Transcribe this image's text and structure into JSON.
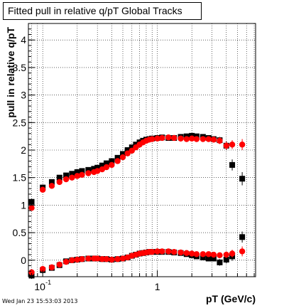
{
  "footer": {
    "timestamp": "Wed Jan 23 15:53:03 2013"
  },
  "colors": {
    "black_series": "#000000",
    "red_series": "#ff0000",
    "frame": "#000000",
    "grid": "#000000"
  },
  "chart_data": {
    "type": "scatter",
    "title": "Fitted pull in relative q/pT  Global Tracks",
    "xlabel": "pT (GeV/c)",
    "ylabel": "pull in relative q/pT",
    "x_scale": "log",
    "xlim": [
      0.075,
      7.2
    ],
    "ylim": [
      -0.3,
      4.3
    ],
    "grid": true,
    "y_ticks": [
      0,
      0.5,
      1,
      1.5,
      2,
      2.5,
      3,
      3.5,
      4
    ],
    "y_tick_labels": [
      "0",
      "0.5",
      "1",
      "1.5",
      "2",
      "2.5",
      "3",
      "3.5",
      "4"
    ],
    "x_tick_labels": [
      {
        "value": 0.1,
        "base": "10",
        "exp": "-1"
      },
      {
        "value": 1,
        "base": "1",
        "exp": ""
      }
    ],
    "series": [
      {
        "color": "#000000",
        "x": [
          0.08,
          0.1,
          0.12,
          0.14,
          0.16,
          0.18,
          0.2,
          0.22,
          0.25,
          0.28,
          0.3,
          0.33,
          0.36,
          0.4,
          0.45,
          0.5,
          0.55,
          0.6,
          0.65,
          0.7,
          0.75,
          0.8,
          0.85,
          0.9,
          1.0,
          1.1,
          1.25,
          1.4,
          1.6,
          1.8,
          2.0,
          2.2,
          2.5,
          2.8,
          3.1,
          3.5,
          4.0,
          4.5,
          5.5
        ],
        "y": [
          1.06,
          1.32,
          1.42,
          1.5,
          1.54,
          1.57,
          1.6,
          1.62,
          1.64,
          1.66,
          1.68,
          1.72,
          1.76,
          1.8,
          1.86,
          1.93,
          2.0,
          2.05,
          2.1,
          2.14,
          2.17,
          2.19,
          2.2,
          2.21,
          2.22,
          2.23,
          2.22,
          2.22,
          2.24,
          2.25,
          2.26,
          2.25,
          2.24,
          2.22,
          2.2,
          2.18,
          2.08,
          1.73,
          1.48
        ],
        "yerr": [
          0.06,
          0.04,
          0.03,
          0.02,
          0.02,
          0.02,
          0.02,
          0.02,
          0.02,
          0.02,
          0.02,
          0.02,
          0.02,
          0.02,
          0.02,
          0.02,
          0.02,
          0.02,
          0.02,
          0.02,
          0.02,
          0.02,
          0.02,
          0.02,
          0.02,
          0.02,
          0.02,
          0.02,
          0.02,
          0.02,
          0.02,
          0.03,
          0.03,
          0.04,
          0.05,
          0.06,
          0.08,
          0.1,
          0.12
        ]
      },
      {
        "color": "#ff0000",
        "x": [
          0.08,
          0.1,
          0.12,
          0.14,
          0.16,
          0.18,
          0.2,
          0.22,
          0.25,
          0.28,
          0.3,
          0.33,
          0.36,
          0.4,
          0.45,
          0.5,
          0.55,
          0.6,
          0.65,
          0.7,
          0.75,
          0.8,
          0.85,
          0.9,
          1.0,
          1.1,
          1.25,
          1.4,
          1.6,
          1.8,
          2.0,
          2.2,
          2.5,
          2.8,
          3.1,
          3.5,
          4.0,
          4.5,
          5.5
        ],
        "y": [
          0.95,
          1.28,
          1.35,
          1.42,
          1.47,
          1.5,
          1.53,
          1.55,
          1.58,
          1.6,
          1.62,
          1.65,
          1.69,
          1.73,
          1.8,
          1.87,
          1.94,
          1.99,
          2.05,
          2.1,
          2.14,
          2.17,
          2.19,
          2.2,
          2.21,
          2.22,
          2.23,
          2.22,
          2.21,
          2.2,
          2.21,
          2.2,
          2.2,
          2.2,
          2.19,
          2.17,
          2.08,
          2.1,
          2.1
        ],
        "yerr": [
          0.05,
          0.04,
          0.03,
          0.02,
          0.02,
          0.02,
          0.02,
          0.02,
          0.02,
          0.02,
          0.02,
          0.02,
          0.02,
          0.02,
          0.02,
          0.02,
          0.02,
          0.02,
          0.02,
          0.02,
          0.02,
          0.02,
          0.02,
          0.02,
          0.02,
          0.02,
          0.02,
          0.02,
          0.02,
          0.02,
          0.02,
          0.03,
          0.03,
          0.04,
          0.05,
          0.06,
          0.07,
          0.08,
          0.1
        ]
      },
      {
        "color": "#000000",
        "x": [
          0.08,
          0.1,
          0.12,
          0.14,
          0.16,
          0.18,
          0.2,
          0.22,
          0.25,
          0.28,
          0.3,
          0.33,
          0.36,
          0.4,
          0.45,
          0.5,
          0.55,
          0.6,
          0.65,
          0.7,
          0.75,
          0.8,
          0.85,
          0.9,
          1.0,
          1.1,
          1.25,
          1.4,
          1.6,
          1.8,
          2.0,
          2.2,
          2.5,
          2.8,
          3.1,
          3.5,
          4.0,
          4.5,
          5.5
        ],
        "y": [
          -0.28,
          -0.18,
          -0.14,
          -0.09,
          -0.02,
          0.0,
          0.01,
          0.02,
          0.03,
          0.03,
          0.03,
          0.02,
          0.02,
          0.01,
          0.02,
          0.03,
          0.05,
          0.08,
          0.1,
          0.12,
          0.13,
          0.14,
          0.15,
          0.15,
          0.15,
          0.15,
          0.15,
          0.14,
          0.13,
          0.11,
          0.09,
          0.07,
          0.05,
          0.03,
          0.03,
          -0.04,
          0.01,
          0.07,
          0.42
        ],
        "yerr": [
          0.06,
          0.04,
          0.03,
          0.02,
          0.02,
          0.02,
          0.02,
          0.02,
          0.02,
          0.02,
          0.02,
          0.02,
          0.02,
          0.02,
          0.02,
          0.02,
          0.02,
          0.02,
          0.02,
          0.02,
          0.02,
          0.02,
          0.02,
          0.02,
          0.02,
          0.02,
          0.02,
          0.02,
          0.02,
          0.02,
          0.02,
          0.03,
          0.03,
          0.04,
          0.05,
          0.06,
          0.07,
          0.08,
          0.1
        ]
      },
      {
        "color": "#ff0000",
        "x": [
          0.08,
          0.1,
          0.12,
          0.14,
          0.16,
          0.18,
          0.2,
          0.22,
          0.25,
          0.28,
          0.3,
          0.33,
          0.36,
          0.4,
          0.45,
          0.5,
          0.55,
          0.6,
          0.65,
          0.7,
          0.75,
          0.8,
          0.85,
          0.9,
          1.0,
          1.1,
          1.25,
          1.4,
          1.6,
          1.8,
          2.0,
          2.2,
          2.5,
          2.8,
          3.1,
          3.5,
          4.0,
          4.5,
          5.5
        ],
        "y": [
          -0.22,
          -0.16,
          -0.13,
          -0.08,
          -0.03,
          0.0,
          0.01,
          0.02,
          0.03,
          0.03,
          0.03,
          0.02,
          0.02,
          0.01,
          0.02,
          0.03,
          0.05,
          0.08,
          0.1,
          0.12,
          0.13,
          0.14,
          0.15,
          0.15,
          0.16,
          0.16,
          0.16,
          0.15,
          0.14,
          0.13,
          0.12,
          0.11,
          0.11,
          0.11,
          0.1,
          0.09,
          0.1,
          0.12,
          0.16
        ],
        "yerr": [
          0.05,
          0.04,
          0.03,
          0.02,
          0.02,
          0.02,
          0.02,
          0.02,
          0.02,
          0.02,
          0.02,
          0.02,
          0.02,
          0.02,
          0.02,
          0.02,
          0.02,
          0.02,
          0.02,
          0.02,
          0.02,
          0.02,
          0.02,
          0.02,
          0.02,
          0.02,
          0.02,
          0.02,
          0.02,
          0.02,
          0.02,
          0.03,
          0.03,
          0.04,
          0.05,
          0.05,
          0.06,
          0.07,
          0.09
        ]
      }
    ]
  }
}
